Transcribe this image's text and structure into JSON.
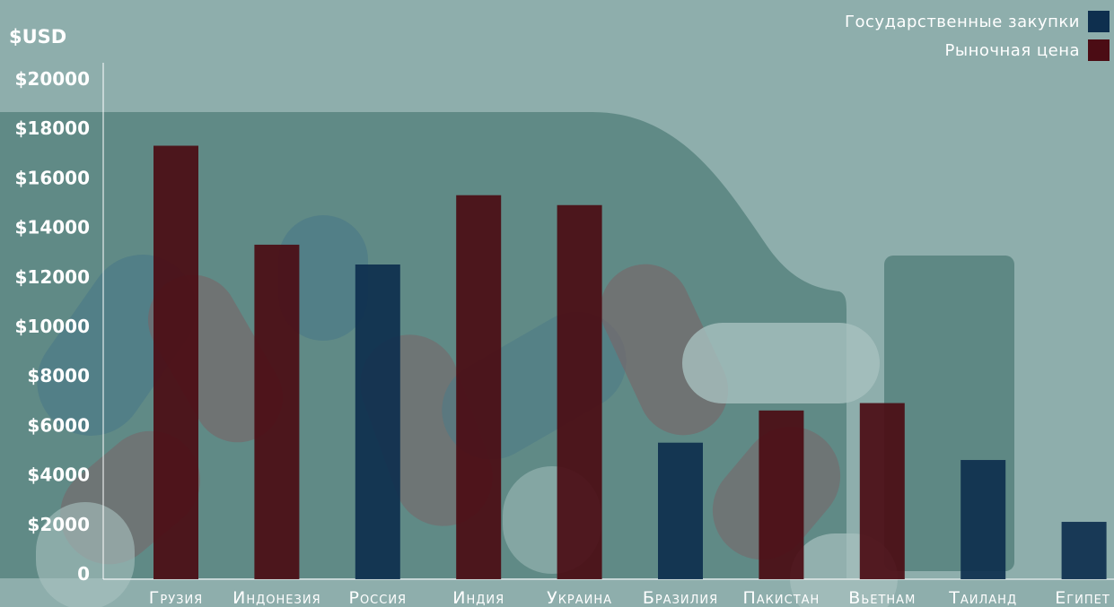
{
  "chart_data": {
    "type": "bar",
    "ylabel": "$USD",
    "ylim": [
      0,
      20000
    ],
    "y_ticks": [
      "0",
      "$2000",
      "$4000",
      "$6000",
      "$8000",
      "$10000",
      "$12000",
      "$14000",
      "$16000",
      "$18000",
      "$20000"
    ],
    "y_tick_values": [
      0,
      2000,
      4000,
      6000,
      8000,
      10000,
      12000,
      14000,
      16000,
      18000,
      20000
    ],
    "categories": [
      "Грузия",
      "Индонезия",
      "Россия",
      "Индия",
      "Украина",
      "Бразилия",
      "Пакистан",
      "Вьетнам",
      "Таиланд",
      "Египет"
    ],
    "bars": [
      {
        "category": "Грузия",
        "series": "Рыночная цена",
        "value": 17300
      },
      {
        "category": "Индонезия",
        "series": "Рыночная цена",
        "value": 13300
      },
      {
        "category": "Россия",
        "series": "Государственные закупки",
        "value": 12500
      },
      {
        "category": "Индия",
        "series": "Рыночная цена",
        "value": 15300
      },
      {
        "category": "Украина",
        "series": "Рыночная цена",
        "value": 14900
      },
      {
        "category": "Бразилия",
        "series": "Государственные закупки",
        "value": 5300
      },
      {
        "category": "Пакистан",
        "series": "Рыночная цена",
        "value": 6600
      },
      {
        "category": "Вьетнам",
        "series": "Рыночная цена",
        "value": 6900
      },
      {
        "category": "Таиланд",
        "series": "Государственные закупки",
        "value": 4600
      },
      {
        "category": "Египет",
        "series": "Государственные закупки",
        "value": 2100
      }
    ],
    "legend": [
      {
        "name": "Государственные закупки",
        "color": "#0e2f4e"
      },
      {
        "name": "Рыночная цена",
        "color": "#4b0c14"
      }
    ],
    "legend_position": "top-right",
    "grid": false
  }
}
